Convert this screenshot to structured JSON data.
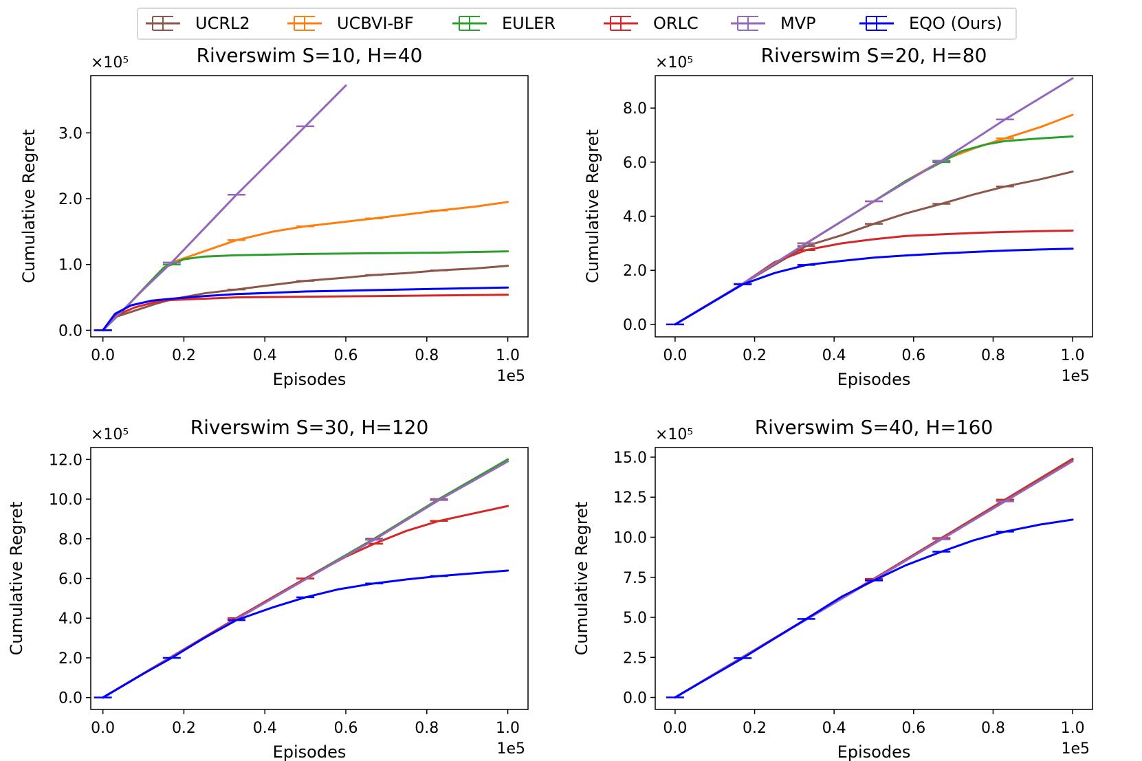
{
  "legend": {
    "placement": "top-center",
    "entries": [
      {
        "name": "UCRL2",
        "color": "#8c564b"
      },
      {
        "name": "UCBVI-BF",
        "color": "#ff7f0e"
      },
      {
        "name": "EULER",
        "color": "#2ca02c"
      },
      {
        "name": "ORLC",
        "color": "#d62728"
      },
      {
        "name": "MVP",
        "color": "#9467bd"
      },
      {
        "name": "EQO (Ours)",
        "color": "#0000ff"
      }
    ]
  },
  "chart_data": [
    {
      "type": "line",
      "title": "Riverswim S=10, H=40",
      "xlabel": "Episodes",
      "ylabel": "Cumulative Regret",
      "x_scale_label": "1e5",
      "y_scale_label": "×10⁵",
      "xlim": [
        -0.03,
        1.05
      ],
      "ylim": [
        -0.1,
        3.87
      ],
      "xticks": [
        0.0,
        0.2,
        0.4,
        0.6,
        0.8,
        1.0
      ],
      "xtick_labels": [
        "0.0",
        "0.2",
        "0.4",
        "0.6",
        "0.8",
        "1.0"
      ],
      "yticks": [
        0.0,
        1.0,
        2.0,
        3.0
      ],
      "ytick_labels": [
        "0.0",
        "1.0",
        "2.0",
        "3.0"
      ],
      "series": [
        {
          "name": "UCRL2",
          "color": "#8c564b",
          "x": [
            0,
            0.03,
            0.08,
            0.13,
            0.17,
            0.25,
            0.33,
            0.42,
            0.5,
            0.6,
            0.67,
            0.75,
            0.83,
            0.92,
            1.0
          ],
          "y": [
            0,
            0.2,
            0.3,
            0.4,
            0.47,
            0.56,
            0.62,
            0.69,
            0.75,
            0.8,
            0.84,
            0.87,
            0.91,
            0.94,
            0.98
          ],
          "err_x": [
            0,
            0.33,
            0.5,
            0.67,
            0.83
          ]
        },
        {
          "name": "UCBVI-BF",
          "color": "#ff7f0e",
          "x": [
            0,
            0.05,
            0.1,
            0.15,
            0.17,
            0.25,
            0.33,
            0.42,
            0.5,
            0.6,
            0.67,
            0.75,
            0.83,
            0.92,
            1.0
          ],
          "y": [
            0,
            0.3,
            0.63,
            0.95,
            1.03,
            1.2,
            1.37,
            1.5,
            1.58,
            1.65,
            1.7,
            1.76,
            1.82,
            1.88,
            1.95
          ],
          "err_x": [
            0,
            0.33,
            0.5,
            0.67,
            0.83
          ]
        },
        {
          "name": "EULER",
          "color": "#2ca02c",
          "x": [
            0,
            0.05,
            0.1,
            0.15,
            0.17,
            0.2,
            0.25,
            0.33,
            0.5,
            0.67,
            0.83,
            1.0
          ],
          "y": [
            0,
            0.3,
            0.63,
            0.95,
            1.0,
            1.08,
            1.12,
            1.14,
            1.16,
            1.17,
            1.18,
            1.2
          ],
          "err_x": [
            0,
            0.17
          ]
        },
        {
          "name": "ORLC",
          "color": "#d62728",
          "x": [
            0,
            0.03,
            0.08,
            0.13,
            0.17,
            0.25,
            0.33,
            0.5,
            0.67,
            0.83,
            1.0
          ],
          "y": [
            0,
            0.22,
            0.35,
            0.43,
            0.46,
            0.48,
            0.5,
            0.51,
            0.52,
            0.53,
            0.54
          ],
          "err_x": [
            0
          ]
        },
        {
          "name": "MVP",
          "color": "#9467bd",
          "x": [
            0,
            0.05,
            0.1,
            0.17,
            0.33,
            0.5,
            0.6
          ],
          "y": [
            0,
            0.31,
            0.62,
            1.03,
            2.06,
            3.1,
            3.72
          ],
          "err_x": [
            0,
            0.17,
            0.33,
            0.5
          ]
        },
        {
          "name": "EQO (Ours)",
          "color": "#0000ff",
          "x": [
            0,
            0.03,
            0.07,
            0.12,
            0.17,
            0.25,
            0.33,
            0.42,
            0.5,
            0.67,
            0.83,
            1.0
          ],
          "y": [
            0,
            0.25,
            0.38,
            0.45,
            0.48,
            0.52,
            0.55,
            0.57,
            0.59,
            0.61,
            0.63,
            0.65
          ],
          "err_x": [
            0
          ]
        }
      ]
    },
    {
      "type": "line",
      "title": "Riverswim S=20, H=80",
      "xlabel": "Episodes",
      "ylabel": "Cumulative Regret",
      "x_scale_label": "1e5",
      "y_scale_label": "×10⁵",
      "xlim": [
        -0.05,
        1.05
      ],
      "ylim": [
        -0.46,
        9.2
      ],
      "xticks": [
        0.0,
        0.2,
        0.4,
        0.6,
        0.8,
        1.0
      ],
      "xtick_labels": [
        "0.0",
        "0.2",
        "0.4",
        "0.6",
        "0.8",
        "1.0"
      ],
      "yticks": [
        0.0,
        2.0,
        4.0,
        6.0,
        8.0
      ],
      "ytick_labels": [
        "0.0",
        "2.0",
        "4.0",
        "6.0",
        "8.0"
      ],
      "series": [
        {
          "name": "UCRL2",
          "color": "#8c564b",
          "x": [
            0,
            0.17,
            0.25,
            0.33,
            0.42,
            0.5,
            0.58,
            0.67,
            0.75,
            0.83,
            0.92,
            1.0
          ],
          "y": [
            0,
            1.5,
            2.2,
            2.9,
            3.3,
            3.72,
            4.1,
            4.46,
            4.8,
            5.1,
            5.37,
            5.65
          ],
          "err_x": [
            0.17,
            0.33,
            0.5,
            0.67,
            0.83
          ]
        },
        {
          "name": "UCBVI-BF",
          "color": "#ff7f0e",
          "x": [
            0,
            0.17,
            0.33,
            0.5,
            0.58,
            0.67,
            0.75,
            0.83,
            0.92,
            1.0
          ],
          "y": [
            0,
            1.5,
            3.0,
            4.55,
            5.3,
            6.05,
            6.5,
            6.88,
            7.3,
            7.75
          ],
          "err_x": [
            0.33,
            0.5,
            0.67,
            0.83
          ]
        },
        {
          "name": "EULER",
          "color": "#2ca02c",
          "x": [
            0,
            0.17,
            0.33,
            0.5,
            0.58,
            0.67,
            0.72,
            0.78,
            0.83,
            0.92,
            1.0
          ],
          "y": [
            0,
            1.5,
            3.0,
            4.55,
            5.3,
            6.0,
            6.4,
            6.65,
            6.78,
            6.88,
            6.95
          ],
          "err_x": [
            0.33,
            0.5,
            0.67
          ]
        },
        {
          "name": "ORLC",
          "color": "#d62728",
          "x": [
            0,
            0.17,
            0.25,
            0.33,
            0.42,
            0.5,
            0.58,
            0.67,
            0.75,
            0.83,
            0.92,
            1.0
          ],
          "y": [
            0,
            1.5,
            2.3,
            2.75,
            3.0,
            3.15,
            3.27,
            3.33,
            3.38,
            3.42,
            3.45,
            3.47
          ],
          "err_x": [
            0.17,
            0.33
          ]
        },
        {
          "name": "MVP",
          "color": "#9467bd",
          "x": [
            0,
            0.17,
            0.33,
            0.5,
            0.67,
            0.83,
            1.0
          ],
          "y": [
            0,
            1.5,
            3.0,
            4.55,
            6.05,
            7.58,
            9.1
          ],
          "err_x": [
            0.17,
            0.33,
            0.5,
            0.67,
            0.83
          ]
        },
        {
          "name": "EQO (Ours)",
          "color": "#0000ff",
          "x": [
            0,
            0.17,
            0.25,
            0.33,
            0.42,
            0.5,
            0.58,
            0.67,
            0.75,
            0.83,
            0.92,
            1.0
          ],
          "y": [
            0,
            1.48,
            1.9,
            2.2,
            2.35,
            2.47,
            2.55,
            2.62,
            2.68,
            2.73,
            2.77,
            2.8
          ],
          "err_x": [
            0,
            0.17,
            0.33
          ]
        }
      ]
    },
    {
      "type": "line",
      "title": "Riverswim S=30, H=120",
      "xlabel": "Episodes",
      "ylabel": "Cumulative Regret",
      "x_scale_label": "1e5",
      "y_scale_label": "×10⁵",
      "xlim": [
        -0.03,
        1.05
      ],
      "ylim": [
        -0.6,
        12.6
      ],
      "xticks": [
        0.0,
        0.2,
        0.4,
        0.6,
        0.8,
        1.0
      ],
      "xtick_labels": [
        "0.0",
        "0.2",
        "0.4",
        "0.6",
        "0.8",
        "1.0"
      ],
      "yticks": [
        0.0,
        2.0,
        4.0,
        6.0,
        8.0,
        10.0,
        12.0
      ],
      "ytick_labels": [
        "0.0",
        "2.0",
        "4.0",
        "6.0",
        "8.0",
        "10.0",
        "12.0"
      ],
      "series": [
        {
          "name": "UCRL2",
          "color": "#8c564b",
          "x": [
            0,
            0.33,
            0.5,
            0.67,
            0.83,
            1.0
          ],
          "y": [
            0,
            4.0,
            6.0,
            8.0,
            10.0,
            12.0
          ],
          "err_x": [
            0.33,
            0.5,
            0.67,
            0.83
          ]
        },
        {
          "name": "UCBVI-BF",
          "color": "#ff7f0e",
          "x": [
            0,
            0.33,
            0.5,
            0.67,
            0.83,
            1.0
          ],
          "y": [
            0,
            4.0,
            6.0,
            8.0,
            10.0,
            12.0
          ],
          "err_x": []
        },
        {
          "name": "EULER",
          "color": "#2ca02c",
          "x": [
            0,
            0.33,
            0.5,
            0.67,
            0.83,
            1.0
          ],
          "y": [
            0,
            4.0,
            6.0,
            8.0,
            10.0,
            12.0
          ],
          "err_x": []
        },
        {
          "name": "ORLC",
          "color": "#d62728",
          "x": [
            0,
            0.33,
            0.5,
            0.6,
            0.67,
            0.75,
            0.83,
            0.92,
            1.0
          ],
          "y": [
            0,
            4.0,
            6.0,
            7.1,
            7.75,
            8.4,
            8.9,
            9.3,
            9.65
          ],
          "err_x": [
            0.33,
            0.5,
            0.67,
            0.83
          ]
        },
        {
          "name": "MVP",
          "color": "#9467bd",
          "x": [
            0,
            0.33,
            0.5,
            0.67,
            0.83,
            1.0
          ],
          "y": [
            0,
            3.95,
            5.95,
            7.95,
            9.95,
            11.9
          ],
          "err_x": [
            0.67,
            0.83
          ]
        },
        {
          "name": "EQO (Ours)",
          "color": "#0000ff",
          "x": [
            0,
            0.1,
            0.17,
            0.25,
            0.33,
            0.42,
            0.5,
            0.58,
            0.67,
            0.75,
            0.83,
            0.92,
            1.0
          ],
          "y": [
            0,
            1.2,
            2.0,
            3.0,
            3.9,
            4.55,
            5.05,
            5.45,
            5.75,
            5.95,
            6.12,
            6.27,
            6.4
          ],
          "err_x": [
            0,
            0.17,
            0.33,
            0.5,
            0.67,
            0.83
          ]
        }
      ]
    },
    {
      "type": "line",
      "title": "Riverswim S=40, H=160",
      "xlabel": "Episodes",
      "ylabel": "Cumulative Regret",
      "x_scale_label": "1e5",
      "y_scale_label": "×10⁵",
      "xlim": [
        -0.05,
        1.05
      ],
      "ylim": [
        -0.75,
        15.6
      ],
      "xticks": [
        0.0,
        0.2,
        0.4,
        0.6,
        0.8,
        1.0
      ],
      "xtick_labels": [
        "0.0",
        "0.2",
        "0.4",
        "0.6",
        "0.8",
        "1.0"
      ],
      "yticks": [
        0.0,
        2.5,
        5.0,
        7.5,
        10.0,
        12.5,
        15.0
      ],
      "ytick_labels": [
        "0.0",
        "2.5",
        "5.0",
        "7.5",
        "10.0",
        "12.5",
        "15.0"
      ],
      "series": [
        {
          "name": "UCRL2",
          "color": "#8c564b",
          "x": [
            0,
            0.5,
            1.0
          ],
          "y": [
            0,
            7.4,
            14.9
          ],
          "err_x": [
            0.5,
            0.67,
            0.83
          ]
        },
        {
          "name": "UCBVI-BF",
          "color": "#ff7f0e",
          "x": [
            0,
            0.5,
            1.0
          ],
          "y": [
            0,
            7.4,
            14.85
          ],
          "err_x": []
        },
        {
          "name": "EULER",
          "color": "#2ca02c",
          "x": [
            0,
            0.5,
            1.0
          ],
          "y": [
            0,
            7.4,
            14.85
          ],
          "err_x": []
        },
        {
          "name": "ORLC",
          "color": "#d62728",
          "x": [
            0,
            0.5,
            1.0
          ],
          "y": [
            0,
            7.4,
            14.85
          ],
          "err_x": [
            0.5,
            0.67,
            0.83
          ]
        },
        {
          "name": "MVP",
          "color": "#9467bd",
          "x": [
            0,
            0.5,
            1.0
          ],
          "y": [
            0,
            7.35,
            14.75
          ],
          "err_x": [
            0.67,
            0.83
          ]
        },
        {
          "name": "EQO (Ours)",
          "color": "#0000ff",
          "x": [
            0,
            0.17,
            0.33,
            0.42,
            0.5,
            0.58,
            0.67,
            0.75,
            0.83,
            0.92,
            1.0
          ],
          "y": [
            0,
            2.45,
            4.9,
            6.3,
            7.3,
            8.25,
            9.1,
            9.8,
            10.35,
            10.8,
            11.1
          ],
          "err_x": [
            0,
            0.17,
            0.33,
            0.5,
            0.67,
            0.83
          ]
        }
      ]
    }
  ]
}
